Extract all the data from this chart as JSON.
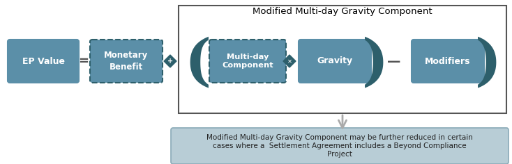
{
  "bg_color": "#ffffff",
  "teal_box_color": "#5b8fa8",
  "bracket_color": "#2d5f6b",
  "outer_rect_border": "#555555",
  "bottom_box_color": "#b8cdd6",
  "bottom_box_border": "#8aaab8",
  "text_color_white": "#ffffff",
  "text_color_dark": "#222222",
  "title_text": "Modified Multi-day Gravity Component",
  "ep_value_text": "EP Value",
  "monetary_benefit_text": "Monetary\nBenefit",
  "multiday_text": "Multi-day\nComponent",
  "gravity_text": "Gravity",
  "modifiers_text": "Modifiers",
  "bottom_text": "Modified Multi-day Gravity Component may be further reduced in certain\ncases where a  Settlement Agreement includes a Beyond Compliance\nProject",
  "equal_sign": "=",
  "minus_sign": "—"
}
